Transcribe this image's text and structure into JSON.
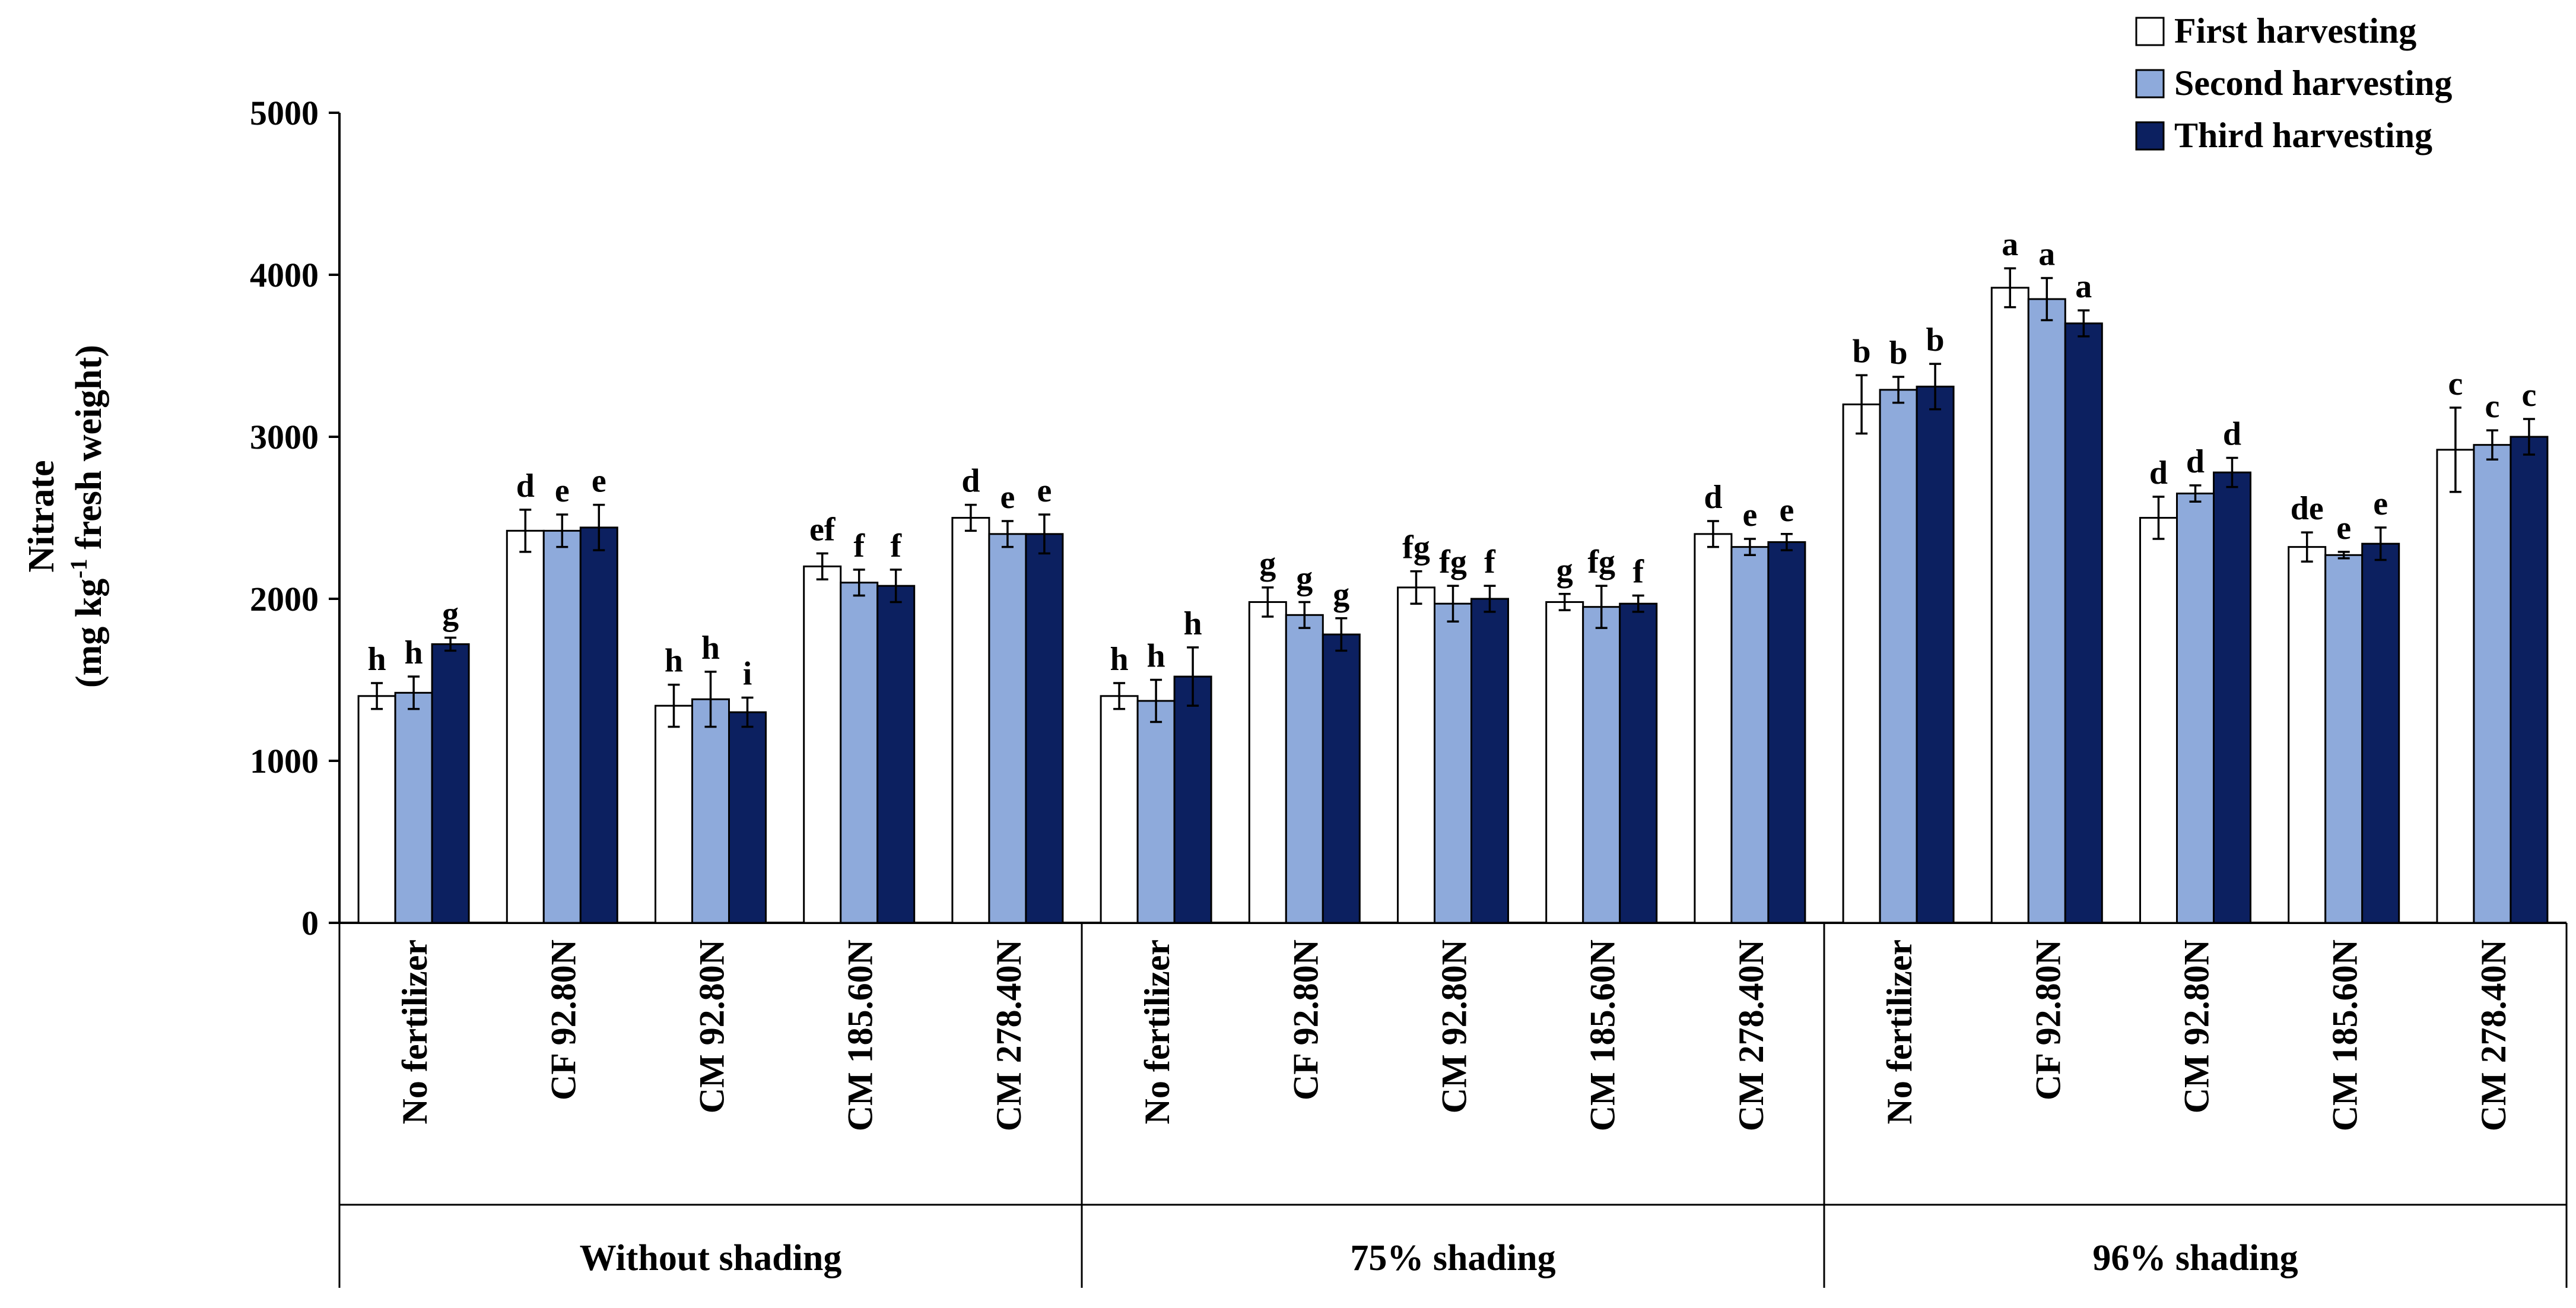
{
  "chart_data": {
    "type": "bar",
    "ylabel_line1": "Nitrate",
    "ylabel_line2_prefix": "(mg kg",
    "ylabel_line2_sup": "-1",
    "ylabel_line2_suffix": " fresh weight)",
    "ylim": [
      0,
      5000
    ],
    "yticks": [
      "0",
      "1000",
      "2000",
      "3000",
      "4000",
      "5000"
    ],
    "ytick_values": [
      0,
      1000,
      2000,
      3000,
      4000,
      5000
    ],
    "groups": [
      {
        "label": "Without shading",
        "categories": [
          "No fertilizer",
          "CF 92.80N",
          "CM 92.80N",
          "CM 185.60N",
          "CM 278.40N"
        ]
      },
      {
        "label": "75% shading",
        "categories": [
          "No fertilizer",
          "CF 92.80N",
          "CM 92.80N",
          "CM 185.60N",
          "CM 278.40N"
        ]
      },
      {
        "label": "96% shading",
        "categories": [
          "No fertilizer",
          "CF 92.80N",
          "CM 92.80N",
          "CM 185.60N",
          "CM 278.40N"
        ]
      }
    ],
    "series": [
      {
        "name": "First harvesting",
        "color": "#ffffff",
        "values": [
          1400,
          2420,
          1340,
          2200,
          2500,
          1400,
          1980,
          2070,
          1980,
          2400,
          3200,
          3920,
          2500,
          2320,
          2920
        ],
        "errors": [
          80,
          130,
          130,
          80,
          80,
          80,
          90,
          100,
          50,
          80,
          180,
          120,
          130,
          90,
          260
        ],
        "letters": [
          "h",
          "d",
          "h",
          "ef",
          "d",
          "h",
          "g",
          "fg",
          "g",
          "d",
          "b",
          "a",
          "d",
          "de",
          "c"
        ]
      },
      {
        "name": "Second harvesting",
        "color": "#8eaadb",
        "values": [
          1420,
          2420,
          1380,
          2100,
          2400,
          1370,
          1900,
          1970,
          1950,
          2320,
          3290,
          3850,
          2650,
          2270,
          2950
        ],
        "errors": [
          100,
          100,
          170,
          80,
          80,
          130,
          80,
          110,
          130,
          50,
          80,
          130,
          50,
          20,
          90
        ],
        "letters": [
          "h",
          "e",
          "h",
          "f",
          "e",
          "h",
          "g",
          "fg",
          "fg",
          "e",
          "b",
          "a",
          "d",
          "e",
          "c"
        ]
      },
      {
        "name": "Third harvesting",
        "color": "#0c2060",
        "values": [
          1720,
          2440,
          1300,
          2080,
          2400,
          1520,
          1780,
          2000,
          1970,
          2350,
          3310,
          3700,
          2780,
          2340,
          3000
        ],
        "errors": [
          40,
          140,
          90,
          100,
          120,
          180,
          100,
          80,
          50,
          50,
          140,
          80,
          90,
          100,
          110
        ],
        "letters": [
          "g",
          "e",
          "i",
          "f",
          "e",
          "h",
          "g",
          "f",
          "f",
          "e",
          "b",
          "a",
          "d",
          "e",
          "c"
        ]
      }
    ]
  }
}
